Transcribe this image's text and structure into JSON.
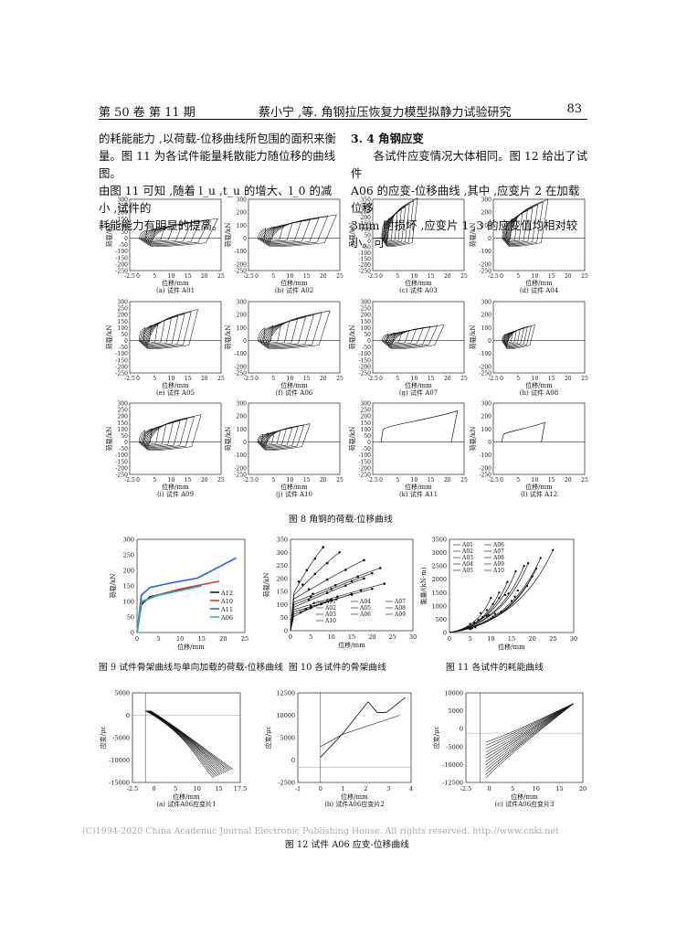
{
  "header": {
    "left": "第 50 卷 第 11 期",
    "center": "蔡小宁 ,等. 角钢拉压恢复力模型拟静力试验研究",
    "page": "83"
  },
  "text": {
    "left": [
      "的耗能能力 ,以荷载-位移曲线所包围的面积来衡",
      "量。图 11 为各试件能量耗散能力随位移的曲线图。",
      "由图 11 可知 ,随着 l_u ,t_u 的增大、l_0 的减小 ,试件的",
      "耗能能力有明显的提高。"
    ],
    "right_heading": "3. 4  角钢应变",
    "right": [
      "各试件应变情况大体相同。图 12 给出了试件",
      "A06 的应变-位移曲线 ,其中 ,应变片 2 在加载位移",
      "3mm 时损坏 ,应变片 1 ,3 的应变值均相对较小。可"
    ]
  },
  "fig8": {
    "caption": "图 8   角钢的荷载-位移曲线",
    "ylabel": "荷载/kN",
    "xlabel": "位移/mm",
    "panels": [
      {
        "label": "(a) 试件 A01",
        "yticks": [
          "300",
          "250",
          "200",
          "150",
          "100",
          "50",
          "0",
          "-50",
          "-100",
          "-150",
          "-200",
          "-250"
        ],
        "xticks": [
          "-2.5",
          "0",
          "5",
          "10",
          "15",
          "20",
          "25"
        ],
        "peak": "150",
        "xmax": "24"
      },
      {
        "label": "(b) 试件 A02",
        "yticks": [
          "300",
          "",
          "200",
          "",
          "100",
          "",
          "0",
          "",
          "-100",
          "",
          "-200",
          "-250"
        ],
        "xticks": [
          "-2.5",
          "0",
          "5",
          "10",
          "15",
          "20",
          "25"
        ],
        "peak": "180",
        "xmax": "24"
      },
      {
        "label": "(c) 试件 A03",
        "yticks": [
          "350",
          "300",
          "250",
          "200",
          "150",
          "100",
          "50",
          "0",
          "-50",
          "-100",
          "-150",
          "-200",
          "-250"
        ],
        "xticks": [
          "-2.5",
          "0",
          "5",
          "10",
          "15",
          "20",
          "25"
        ],
        "peak": "310",
        "xmax": "11"
      },
      {
        "label": "(d) 试件 A04",
        "yticks": [
          "300",
          "",
          "200",
          "",
          "100",
          "",
          "0",
          "",
          "-100",
          "",
          "-200",
          "-250"
        ],
        "xticks": [
          "-2.5",
          "0",
          "5",
          "10",
          "15",
          "20",
          "25"
        ],
        "peak": "300",
        "xmax": "14"
      },
      {
        "label": "(e) 试件 A05",
        "yticks": [
          "300",
          "250",
          "200",
          "150",
          "100",
          "50",
          "0",
          "-50",
          "-100",
          "-150",
          "-200",
          "-250"
        ],
        "xticks": [
          "-2.5",
          "0",
          "5",
          "10",
          "15",
          "20",
          "25"
        ],
        "peak": "240",
        "xmax": "18"
      },
      {
        "label": "(f) 试件 A06",
        "yticks": [
          "300",
          "",
          "200",
          "",
          "100",
          "",
          "0",
          "",
          "-100",
          "",
          "-200",
          "-250"
        ],
        "xticks": [
          "-2.5",
          "0",
          "5",
          "10",
          "15",
          "20",
          "25"
        ],
        "peak": "230",
        "xmax": "22"
      },
      {
        "label": "(g) 试件 A07",
        "yticks": [
          "300",
          "250",
          "200",
          "150",
          "100",
          "50",
          "0",
          "-50",
          "-100",
          "-150",
          "-200",
          "-250"
        ],
        "xticks": [
          "-2.5",
          "0",
          "5",
          "10",
          "15",
          "20",
          "25"
        ],
        "peak": "120",
        "xmax": "19"
      },
      {
        "label": "(h) 试件 A08",
        "yticks": [
          "300",
          "",
          "200",
          "",
          "100",
          "",
          "0",
          "",
          "-100",
          "",
          "-200",
          "-250"
        ],
        "xticks": [
          "-2.5",
          "0",
          "5",
          "10",
          "15",
          "20",
          "25"
        ],
        "peak": "120",
        "xmax": "10"
      },
      {
        "label": "(i) 试件 A09",
        "yticks": [
          "300",
          "250",
          "200",
          "150",
          "100",
          "50",
          "0",
          "-50",
          "-100",
          "-150",
          "-200",
          "-250"
        ],
        "xticks": [
          "-2.5",
          "0",
          "5",
          "10",
          "15",
          "20",
          "25"
        ],
        "peak": "210",
        "xmax": "19"
      },
      {
        "label": "(j) 试件 A10",
        "yticks": [
          "300",
          "",
          "200",
          "",
          "100",
          "",
          "0",
          "",
          "-100",
          "",
          "-200",
          "-250"
        ],
        "xticks": [
          "-2.5",
          "0",
          "5",
          "10",
          "15",
          "20",
          "25"
        ],
        "peak": "140",
        "xmax": "16"
      },
      {
        "label": "(k) 试件 A11",
        "yticks": [
          "300",
          "250",
          "200",
          "150",
          "100",
          "50",
          "0",
          "-50",
          "-100",
          "-150",
          "-200",
          "-250"
        ],
        "xticks": [
          "-2.5",
          "0",
          "5",
          "10",
          "15",
          "20",
          "25"
        ],
        "peak": "240",
        "xmax": "23",
        "monotonic": true
      },
      {
        "label": "(l) 试件 A12",
        "yticks": [
          "300",
          "",
          "200",
          "",
          "100",
          "",
          "0",
          "",
          "-100",
          "",
          "-200",
          "-250"
        ],
        "xticks": [
          "-2.5",
          "0",
          "5",
          "10",
          "15",
          "20",
          "25"
        ],
        "peak": "150",
        "xmax": "13",
        "monotonic": true
      }
    ]
  },
  "fig9": {
    "caption": "图 9   试件骨架曲线与单向加载的荷载-位移曲线",
    "ylabel": "荷载/kN",
    "xlabel": "位移/mm",
    "yticks": [
      "300",
      "250",
      "200",
      "150",
      "100",
      "50",
      "0"
    ],
    "xticks": [
      "0",
      "5",
      "10",
      "15",
      "20",
      "25"
    ],
    "legend": [
      "A12",
      "A10",
      "A11",
      "A06"
    ]
  },
  "fig10": {
    "caption": "图 10   各试件的骨架曲线",
    "ylabel": "荷载/kN",
    "xlabel": "位移/mm",
    "yticks": [
      "350",
      "300",
      "250",
      "200",
      "150",
      "100",
      "50",
      "0"
    ],
    "xticks": [
      "0",
      "5",
      "10",
      "15",
      "20",
      "25",
      "30"
    ],
    "legend": [
      "A01",
      "A04",
      "A07",
      "A02",
      "A05",
      "A08",
      "A03",
      "A06",
      "A09",
      "A10"
    ]
  },
  "fig11": {
    "caption": "图 11   各试件的耗能曲线",
    "ylabel": "能量/(kN·m)",
    "xlabel": "位移/mm",
    "yticks": [
      "3500",
      "3000",
      "2500",
      "2000",
      "1500",
      "1000",
      "500",
      "0"
    ],
    "xticks": [
      "0",
      "5",
      "10",
      "15",
      "20",
      "25",
      "30"
    ],
    "legend": [
      "A01",
      "A06",
      "A02",
      "A07",
      "A03",
      "A08",
      "A04",
      "A09",
      "A05",
      "A10"
    ]
  },
  "fig12": {
    "caption": "图 12   试件 A06 应变-位移曲线",
    "ylabel": "应变/με",
    "xlabel": "位移/mm",
    "panels": [
      {
        "label": "(a) 试件A06应变片1",
        "yticks": [
          "5000",
          "0",
          "-5000",
          "-10000",
          "-15000"
        ],
        "xticks": [
          "-2.5",
          "0",
          "5",
          "10",
          "15",
          "17.5"
        ]
      },
      {
        "label": "(b) 试件A06应变片2",
        "yticks": [
          "12500",
          "10000",
          "5000",
          "0",
          "-2500"
        ],
        "xticks": [
          "-1",
          "0",
          "1",
          "2",
          "3",
          "4"
        ]
      },
      {
        "label": "(c) 试件A06应变片3",
        "yticks": [
          "10000",
          "5000",
          "0",
          "-5000",
          "-10000",
          "-12500"
        ],
        "xticks": [
          "-2.5",
          "0",
          "5",
          "10",
          "15",
          "20"
        ]
      }
    ]
  },
  "watermark": "(C)1994-2020 China Academic Journal Electronic Publishing House. All rights reserved.    http://www.cnki.net"
}
